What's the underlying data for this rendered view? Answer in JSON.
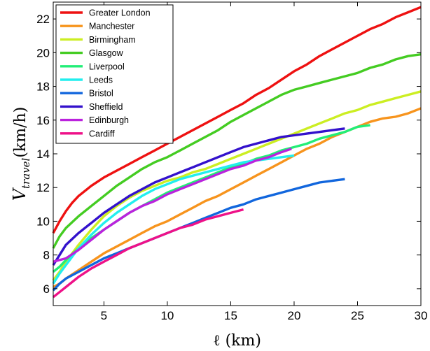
{
  "chart_data": {
    "type": "line",
    "title": "",
    "xlabel": "ℓ (km)",
    "ylabel": "V_travel(km/h)",
    "ylabel_main": "V",
    "ylabel_sub": "travel",
    "ylabel_unit": "(km/h)",
    "xlim": [
      1,
      30
    ],
    "ylim": [
      5,
      23
    ],
    "xticks": [
      5,
      10,
      15,
      20,
      25,
      30
    ],
    "yticks": [
      6,
      8,
      10,
      12,
      14,
      16,
      18,
      20,
      22
    ],
    "grid": false,
    "legend_position": "top-left",
    "series": [
      {
        "name": "Greater London",
        "color": "#ee1111",
        "x": [
          1,
          1.5,
          2,
          2.5,
          3,
          4,
          5,
          6,
          7,
          8,
          9,
          10,
          11,
          12,
          13,
          14,
          15,
          16,
          17,
          18,
          19,
          20,
          21,
          22,
          23,
          24,
          25,
          26,
          27,
          28,
          29,
          30
        ],
        "y": [
          9.3,
          10.0,
          10.6,
          11.1,
          11.5,
          12.1,
          12.6,
          13.0,
          13.4,
          13.8,
          14.2,
          14.6,
          15.0,
          15.4,
          15.8,
          16.2,
          16.6,
          17.0,
          17.5,
          17.9,
          18.4,
          18.9,
          19.3,
          19.8,
          20.2,
          20.6,
          21.0,
          21.4,
          21.7,
          22.1,
          22.4,
          22.7
        ]
      },
      {
        "name": "Manchester",
        "color": "#f7941d",
        "x": [
          1,
          1.5,
          2,
          3,
          4,
          5,
          6,
          7,
          8,
          9,
          10,
          11,
          12,
          13,
          14,
          15,
          16,
          17,
          18,
          19,
          20,
          21,
          22,
          23,
          24,
          25,
          26,
          27,
          28,
          29,
          30
        ],
        "y": [
          6.1,
          6.3,
          6.6,
          7.1,
          7.6,
          8.1,
          8.5,
          8.9,
          9.3,
          9.7,
          10.0,
          10.4,
          10.8,
          11.2,
          11.5,
          11.9,
          12.3,
          12.7,
          13.1,
          13.5,
          13.9,
          14.3,
          14.6,
          15.0,
          15.3,
          15.6,
          15.9,
          16.1,
          16.2,
          16.4,
          16.7
        ]
      },
      {
        "name": "Birmingham",
        "color": "#ccee22",
        "x": [
          1,
          1.5,
          2,
          3,
          4,
          5,
          6,
          7,
          8,
          9,
          10,
          11,
          12,
          13,
          14,
          15,
          16,
          17,
          18,
          19,
          20,
          21,
          22,
          23,
          24,
          25,
          26,
          27,
          28,
          29,
          30
        ],
        "y": [
          6.5,
          7.0,
          7.6,
          8.6,
          9.5,
          10.3,
          10.9,
          11.4,
          11.8,
          12.1,
          12.4,
          12.6,
          12.9,
          13.1,
          13.4,
          13.7,
          14.0,
          14.3,
          14.6,
          14.9,
          15.2,
          15.5,
          15.8,
          16.1,
          16.4,
          16.6,
          16.9,
          17.1,
          17.3,
          17.5,
          17.7
        ]
      },
      {
        "name": "Glasgow",
        "color": "#44cc22",
        "x": [
          1,
          1.5,
          2,
          3,
          4,
          5,
          6,
          7,
          8,
          9,
          10,
          11,
          12,
          13,
          14,
          15,
          16,
          17,
          18,
          19,
          20,
          21,
          22,
          23,
          24,
          25,
          26,
          27,
          28,
          29,
          30
        ],
        "y": [
          8.4,
          9.1,
          9.6,
          10.3,
          10.9,
          11.5,
          12.1,
          12.6,
          13.1,
          13.5,
          13.8,
          14.2,
          14.6,
          15.0,
          15.4,
          15.9,
          16.3,
          16.7,
          17.1,
          17.5,
          17.8,
          18.0,
          18.2,
          18.4,
          18.6,
          18.8,
          19.1,
          19.3,
          19.6,
          19.8,
          19.9
        ]
      },
      {
        "name": "Liverpool",
        "color": "#22ee77",
        "x": [
          1,
          1.5,
          2,
          3,
          4,
          5,
          6,
          7,
          8,
          9,
          10,
          11,
          12,
          13,
          14,
          15,
          16,
          17,
          18,
          19,
          20,
          21,
          22,
          23,
          24,
          25,
          26
        ],
        "y": [
          7.0,
          7.3,
          7.7,
          8.4,
          9.0,
          9.5,
          10.0,
          10.5,
          10.9,
          11.3,
          11.7,
          12.0,
          12.3,
          12.6,
          12.9,
          13.2,
          13.4,
          13.7,
          13.9,
          14.2,
          14.4,
          14.6,
          14.9,
          15.1,
          15.3,
          15.6,
          15.7
        ]
      },
      {
        "name": "Leeds",
        "color": "#22eeee",
        "x": [
          1,
          1.5,
          2,
          3,
          4,
          5,
          6,
          7,
          8,
          9,
          10,
          11,
          12,
          13,
          14,
          15,
          16,
          17,
          18,
          19,
          20
        ],
        "y": [
          6.3,
          6.9,
          7.4,
          8.4,
          9.2,
          9.9,
          10.5,
          11.0,
          11.5,
          11.9,
          12.2,
          12.5,
          12.7,
          12.9,
          13.1,
          13.3,
          13.5,
          13.6,
          13.7,
          13.8,
          13.9
        ]
      },
      {
        "name": "Bristol",
        "color": "#1166dd",
        "x": [
          1,
          1.5,
          2,
          3,
          4,
          5,
          6,
          7,
          8,
          9,
          10,
          11,
          12,
          13,
          14,
          15,
          16,
          17,
          18,
          19,
          20,
          21,
          22,
          23,
          24
        ],
        "y": [
          5.9,
          6.3,
          6.6,
          7.0,
          7.4,
          7.8,
          8.1,
          8.4,
          8.7,
          9.0,
          9.3,
          9.6,
          9.9,
          10.2,
          10.5,
          10.8,
          11.0,
          11.3,
          11.5,
          11.7,
          11.9,
          12.1,
          12.3,
          12.4,
          12.5
        ]
      },
      {
        "name": "Sheffield",
        "color": "#3311cc",
        "x": [
          1,
          1.5,
          2,
          3,
          4,
          5,
          6,
          7,
          8,
          9,
          10,
          11,
          12,
          13,
          14,
          15,
          16,
          17,
          18,
          19,
          20,
          21,
          22,
          23,
          24
        ],
        "y": [
          7.4,
          8.0,
          8.6,
          9.3,
          9.9,
          10.5,
          11.0,
          11.5,
          11.9,
          12.3,
          12.6,
          12.9,
          13.2,
          13.5,
          13.8,
          14.1,
          14.4,
          14.6,
          14.8,
          15.0,
          15.1,
          15.2,
          15.3,
          15.4,
          15.5
        ]
      },
      {
        "name": "Edinburgh",
        "color": "#bb22dd",
        "x": [
          1,
          1.5,
          2,
          3,
          4,
          5,
          6,
          7,
          8,
          9,
          10,
          11,
          12,
          13,
          14,
          15,
          16,
          17,
          18,
          19,
          19.8
        ],
        "y": [
          7.6,
          7.7,
          7.8,
          8.3,
          8.9,
          9.5,
          10.0,
          10.5,
          10.9,
          11.2,
          11.6,
          11.9,
          12.2,
          12.5,
          12.8,
          13.1,
          13.3,
          13.6,
          13.8,
          14.1,
          14.3
        ]
      },
      {
        "name": "Cardiff",
        "color": "#ee1188",
        "x": [
          1,
          1.5,
          2,
          3,
          4,
          5,
          6,
          7,
          8,
          9,
          10,
          11,
          12,
          13,
          14,
          15,
          16
        ],
        "y": [
          5.5,
          5.8,
          6.1,
          6.7,
          7.2,
          7.6,
          8.0,
          8.4,
          8.7,
          9.0,
          9.3,
          9.6,
          9.8,
          10.1,
          10.3,
          10.5,
          10.7
        ]
      }
    ]
  }
}
